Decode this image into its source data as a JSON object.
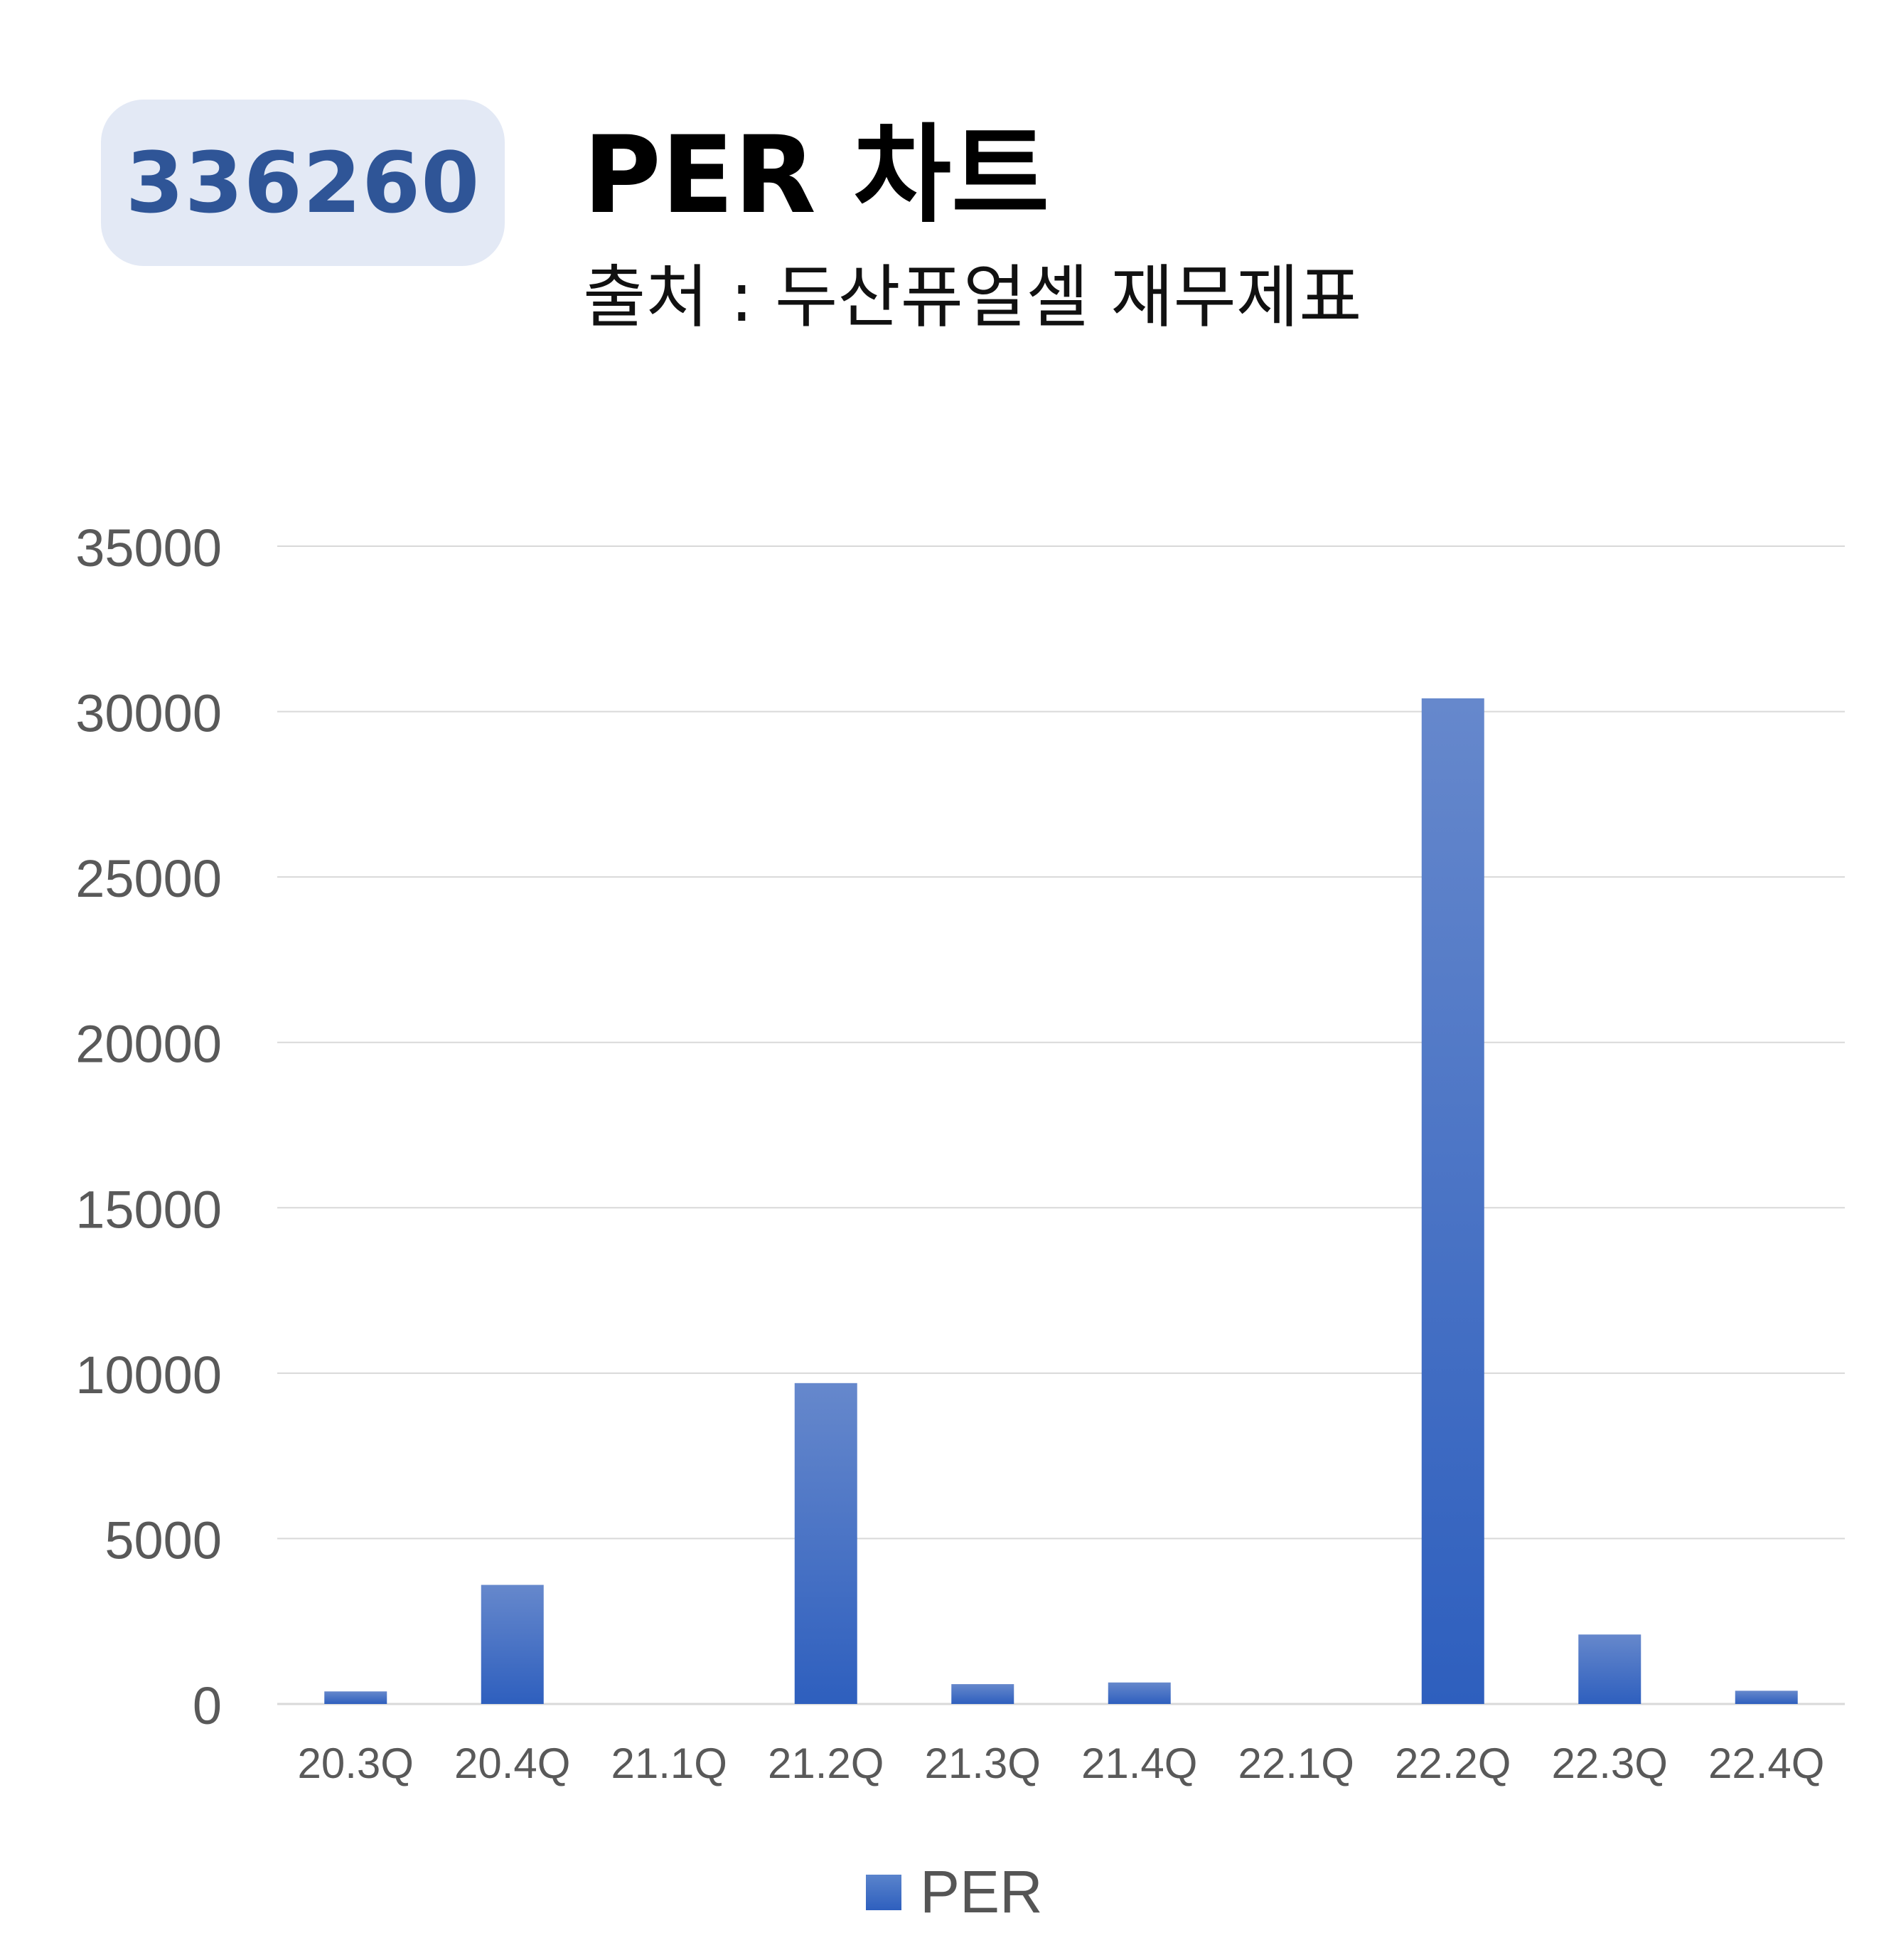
{
  "header": {
    "code": "336260",
    "title": "PER 차트",
    "subtitle": "출처 : 두산퓨얼셀 재무제표"
  },
  "colors": {
    "bar_top": "#6688cc",
    "bar_bottom": "#2e5fbe",
    "badge_bg": "#e3e9f5",
    "badge_text": "#2f5597",
    "grid": "#d9d9d9",
    "tick_text": "#595959"
  },
  "chart_data": {
    "type": "bar",
    "title": "",
    "xlabel": "",
    "ylabel": "",
    "categories": [
      "20.3Q",
      "20.4Q",
      "21.1Q",
      "21.2Q",
      "21.3Q",
      "21.4Q",
      "22.1Q",
      "22.2Q",
      "22.3Q",
      "22.4Q"
    ],
    "series": [
      {
        "name": "PER",
        "values": [
          380,
          3600,
          0,
          9700,
          600,
          650,
          0,
          30400,
          2100,
          400
        ]
      }
    ],
    "ylim": [
      0,
      35000
    ],
    "yticks": [
      0,
      5000,
      10000,
      15000,
      20000,
      25000,
      30000,
      35000
    ],
    "grid": true,
    "legend": "bottom"
  }
}
